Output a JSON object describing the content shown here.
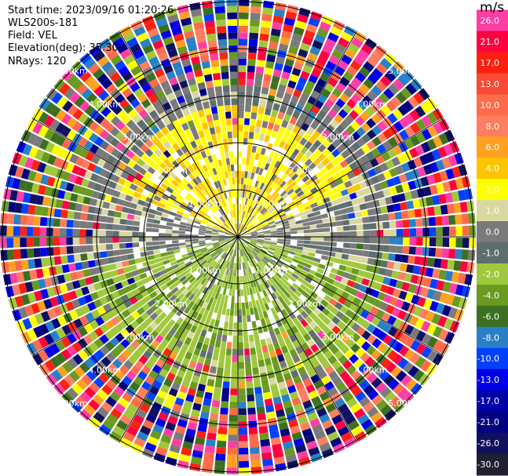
{
  "header": {
    "start_time": "Start time: 2023/09/16 01:20:26",
    "site": "WLS200s-181",
    "field": "Field: VEL",
    "elevation": "Elevation(deg): 35.30",
    "nrays": "NRays: 120"
  },
  "range_labels": [
    "1.00km",
    "2.00km",
    "3.00km",
    "4.00km",
    "5.00km"
  ],
  "colorbar": {
    "unit": "m/s",
    "ticks": [
      "26.0",
      "21.0",
      "17.0",
      "13.0",
      "10.0",
      "8.0",
      "6.0",
      "4.0",
      "2.0",
      "1.0",
      "0.0",
      "-1.0",
      "-2.0",
      "-4.0",
      "-6.0",
      "-8.0",
      "-10.0",
      "-13.0",
      "-17.0",
      "-21.0",
      "-26.0",
      "-30.0"
    ],
    "colors": [
      "#ff3ea5",
      "#ff0040",
      "#ff2010",
      "#f84a34",
      "#ff6a4a",
      "#ff7e60",
      "#ffa020",
      "#ffc400",
      "#ffff00",
      "#d8d8a0",
      "#7a7a7a",
      "#5e6e6e",
      "#a0c83c",
      "#6a9a20",
      "#3c7020",
      "#2880c8",
      "#0040ff",
      "#0000e8",
      "#0000a8",
      "#000080",
      "#101060",
      "#202030"
    ]
  }
}
